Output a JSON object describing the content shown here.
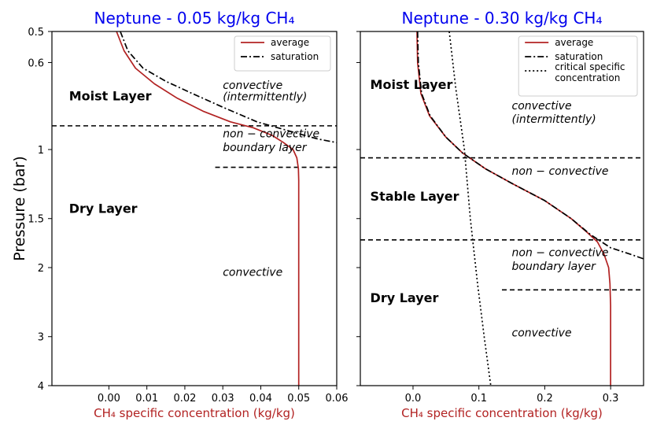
{
  "chart_data": [
    {
      "type": "line",
      "title": "Neptune - 0.05 kg/kg CH₄",
      "xlabel": "CH₄ specific concentration (kg/kg)",
      "ylabel": "Pressure (bar)",
      "xlim": [
        -0.015,
        0.06
      ],
      "ylim": [
        0.5,
        4
      ],
      "yscale": "log",
      "y_inverted": true,
      "x_ticks": [
        0.0,
        0.01,
        0.02,
        0.03,
        0.04,
        0.05,
        0.06
      ],
      "x_tick_labels": [
        "0.00",
        "0.01",
        "0.02",
        "0.03",
        "0.04",
        "0.05",
        "0.06"
      ],
      "y_ticks": [
        0.5,
        0.6,
        1,
        1.5,
        2,
        3,
        4
      ],
      "y_tick_labels": [
        "0.5",
        "0.6",
        "1",
        "1.5",
        "2",
        "3",
        "4"
      ],
      "legend_position": "top-right",
      "series": [
        {
          "name": "average",
          "style": "solid",
          "color": "#b22222",
          "points": [
            [
              0.002,
              0.5
            ],
            [
              0.004,
              0.56
            ],
            [
              0.007,
              0.62
            ],
            [
              0.012,
              0.68
            ],
            [
              0.018,
              0.74
            ],
            [
              0.025,
              0.8
            ],
            [
              0.032,
              0.85
            ],
            [
              0.038,
              0.88
            ],
            [
              0.043,
              0.92
            ],
            [
              0.046,
              0.96
            ],
            [
              0.0485,
              1.0
            ],
            [
              0.0495,
              1.05
            ],
            [
              0.0499,
              1.12
            ],
            [
              0.05,
              1.2
            ],
            [
              0.05,
              1.5
            ],
            [
              0.05,
              2
            ],
            [
              0.05,
              3
            ],
            [
              0.05,
              4
            ]
          ]
        },
        {
          "name": "saturation",
          "style": "dashdot",
          "color": "#000000",
          "points": [
            [
              0.003,
              0.5
            ],
            [
              0.005,
              0.56
            ],
            [
              0.009,
              0.62
            ],
            [
              0.015,
              0.67
            ],
            [
              0.022,
              0.72
            ],
            [
              0.03,
              0.78
            ],
            [
              0.039,
              0.85
            ],
            [
              0.048,
              0.9
            ],
            [
              0.055,
              0.94
            ],
            [
              0.06,
              0.96
            ]
          ]
        }
      ],
      "hlines": [
        {
          "y": 0.87,
          "x_from": -0.015,
          "x_to": 0.06,
          "style": "dashed"
        },
        {
          "y": 1.11,
          "x_from": 0.028,
          "x_to": 0.06,
          "style": "dashed"
        }
      ],
      "annotations": [
        {
          "text": "Moist Layer",
          "x": -0.0105,
          "y": 0.75,
          "bold": true
        },
        {
          "text": "Dry Layer",
          "x": -0.0105,
          "y": 1.45,
          "bold": true
        },
        {
          "text": "convective",
          "x": 0.03,
          "y": 0.7,
          "italic": true
        },
        {
          "text": "(intermittently)",
          "x": 0.03,
          "y": 0.75,
          "italic": true
        },
        {
          "text": "non − convective",
          "x": 0.03,
          "y": 0.93,
          "italic": true
        },
        {
          "text": "boundary layer",
          "x": 0.03,
          "y": 1.01,
          "italic": true
        },
        {
          "text": "convective",
          "x": 0.03,
          "y": 2.1,
          "italic": true
        }
      ]
    },
    {
      "type": "line",
      "title": "Neptune - 0.30 kg/kg CH₄",
      "xlabel": "CH₄ specific concentration (kg/kg)",
      "ylabel": "",
      "xlim": [
        -0.08,
        0.35
      ],
      "ylim": [
        0.5,
        4
      ],
      "yscale": "log",
      "y_inverted": true,
      "x_ticks": [
        0.0,
        0.1,
        0.2,
        0.3
      ],
      "x_tick_labels": [
        "0.0",
        "0.1",
        "0.2",
        "0.3"
      ],
      "y_ticks": [
        0.5,
        0.6,
        1,
        1.5,
        2,
        3,
        4
      ],
      "y_tick_labels": [],
      "legend_position": "top-right",
      "series": [
        {
          "name": "average",
          "style": "solid",
          "color": "#b22222",
          "points": [
            [
              0.006,
              0.5
            ],
            [
              0.007,
              0.6
            ],
            [
              0.012,
              0.72
            ],
            [
              0.025,
              0.82
            ],
            [
              0.05,
              0.93
            ],
            [
              0.075,
              1.02
            ],
            [
              0.11,
              1.12
            ],
            [
              0.15,
              1.22
            ],
            [
              0.2,
              1.35
            ],
            [
              0.24,
              1.5
            ],
            [
              0.265,
              1.63
            ],
            [
              0.28,
              1.72
            ],
            [
              0.29,
              1.85
            ],
            [
              0.297,
              2.0
            ],
            [
              0.299,
              2.2
            ],
            [
              0.3,
              2.5
            ],
            [
              0.3,
              3
            ],
            [
              0.3,
              4
            ]
          ]
        },
        {
          "name": "saturation",
          "style": "dashdot",
          "color": "#000000",
          "points": [
            [
              0.007,
              0.5
            ],
            [
              0.008,
              0.6
            ],
            [
              0.013,
              0.72
            ],
            [
              0.026,
              0.82
            ],
            [
              0.05,
              0.93
            ],
            [
              0.075,
              1.02
            ],
            [
              0.11,
              1.12
            ],
            [
              0.15,
              1.22
            ],
            [
              0.2,
              1.35
            ],
            [
              0.24,
              1.5
            ],
            [
              0.27,
              1.65
            ],
            [
              0.3,
              1.78
            ],
            [
              0.33,
              1.85
            ],
            [
              0.35,
              1.9
            ]
          ]
        },
        {
          "name": "critical specific concentration",
          "style": "dotted",
          "color": "#000000",
          "points": [
            [
              0.055,
              0.5
            ],
            [
              0.065,
              0.7
            ],
            [
              0.078,
              1.0
            ],
            [
              0.087,
              1.5
            ],
            [
              0.098,
              2.2
            ],
            [
              0.108,
              3.0
            ],
            [
              0.118,
              4.0
            ]
          ]
        }
      ],
      "hlines": [
        {
          "y": 1.05,
          "x_from": -0.08,
          "x_to": 0.35,
          "style": "dashed"
        },
        {
          "y": 1.7,
          "x_from": -0.08,
          "x_to": 0.35,
          "style": "dashed"
        },
        {
          "y": 2.28,
          "x_from": 0.135,
          "x_to": 0.35,
          "style": "dashed"
        }
      ],
      "annotations": [
        {
          "text": "Moist Layer",
          "x": -0.065,
          "y": 0.7,
          "bold": true
        },
        {
          "text": "Stable Layer",
          "x": -0.065,
          "y": 1.35,
          "bold": true
        },
        {
          "text": "Dry Layer",
          "x": -0.065,
          "y": 2.45,
          "bold": true
        },
        {
          "text": "convective",
          "x": 0.15,
          "y": 0.79,
          "italic": true
        },
        {
          "text": "(intermittently)",
          "x": 0.15,
          "y": 0.855,
          "italic": true
        },
        {
          "text": "non − convective",
          "x": 0.15,
          "y": 1.16,
          "italic": true
        },
        {
          "text": "non − convective",
          "x": 0.15,
          "y": 1.87,
          "italic": true
        },
        {
          "text": "boundary layer",
          "x": 0.15,
          "y": 2.03,
          "italic": true
        },
        {
          "text": "convective",
          "x": 0.15,
          "y": 3.0,
          "italic": true
        }
      ]
    }
  ]
}
